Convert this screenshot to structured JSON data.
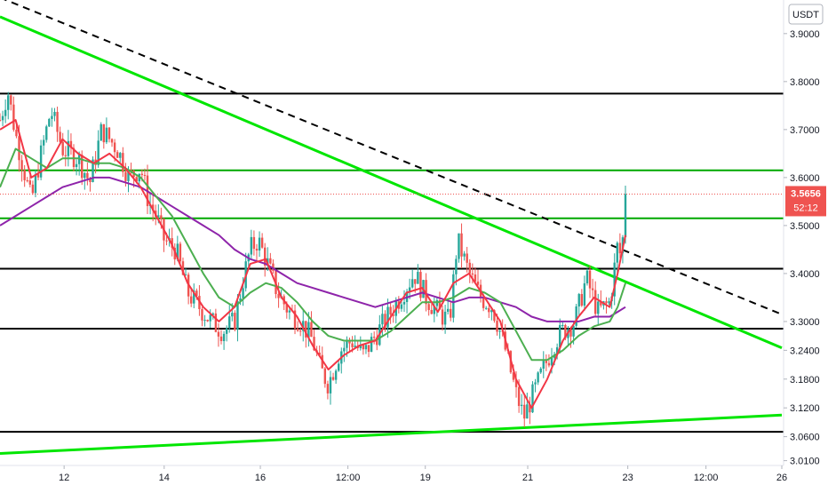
{
  "quote_currency": "USDT",
  "current_price_label": "3.5656",
  "countdown_label": "52:12",
  "colors": {
    "up": "#26a69a",
    "down": "#ef5350",
    "ema_fast": "#f23645",
    "ema_mid": "#4caf50",
    "ma_slow": "#8e24aa",
    "trendline_green": "#00e600",
    "trendline_dashed": "#000000",
    "level_black": "#000000",
    "level_green": "#00a800",
    "price_tag": "#ef5350",
    "axis_text": "#131722"
  },
  "chart_data": {
    "type": "candlestick",
    "title": "",
    "xlabel": "",
    "ylabel": "",
    "ylim": [
      3.0,
      3.97
    ],
    "grid": false,
    "y_ticks": [
      "3.9000",
      "3.8000",
      "3.7000",
      "3.6000",
      "3.5000",
      "3.4000",
      "3.3000",
      "3.2400",
      "3.1800",
      "3.1200",
      "3.0600",
      "3.0100"
    ],
    "y_tick_values": [
      3.9,
      3.8,
      3.7,
      3.6,
      3.5,
      3.4,
      3.3,
      3.24,
      3.18,
      3.12,
      3.06,
      3.01
    ],
    "x_ticks": [
      {
        "label": "12",
        "t": 0.082
      },
      {
        "label": "14",
        "t": 0.21
      },
      {
        "label": "16",
        "t": 0.333
      },
      {
        "label": "12:00",
        "t": 0.445
      },
      {
        "label": "19",
        "t": 0.544
      },
      {
        "label": "21",
        "t": 0.675
      },
      {
        "label": "23",
        "t": 0.803
      },
      {
        "label": "12:00",
        "t": 0.903
      },
      {
        "label": "26",
        "t": 1.0
      }
    ],
    "horizontal_levels": [
      {
        "price": 3.775,
        "color": "level_black"
      },
      {
        "price": 3.615,
        "color": "level_green"
      },
      {
        "price": 3.515,
        "color": "level_green"
      },
      {
        "price": 3.41,
        "color": "level_black"
      },
      {
        "price": 3.285,
        "color": "level_black"
      },
      {
        "price": 3.07,
        "color": "level_black"
      }
    ],
    "trendlines": [
      {
        "style": "solid",
        "color": "trendline_green",
        "points": [
          [
            0.0,
            3.935
          ],
          [
            1.0,
            3.245
          ]
        ]
      },
      {
        "style": "dashed",
        "color": "trendline_dashed",
        "points": [
          [
            0.0,
            3.975
          ],
          [
            1.0,
            3.315
          ]
        ]
      },
      {
        "style": "solid",
        "color": "trendline_green",
        "points": [
          [
            0.0,
            3.025
          ],
          [
            1.0,
            3.105
          ]
        ]
      }
    ],
    "current_price": 3.5656,
    "price_path": [
      [
        0.0,
        3.72
      ],
      [
        0.01,
        3.78
      ],
      [
        0.02,
        3.69
      ],
      [
        0.03,
        3.62
      ],
      [
        0.04,
        3.55
      ],
      [
        0.05,
        3.63
      ],
      [
        0.065,
        3.74
      ],
      [
        0.08,
        3.66
      ],
      [
        0.1,
        3.64
      ],
      [
        0.115,
        3.59
      ],
      [
        0.13,
        3.7
      ],
      [
        0.15,
        3.66
      ],
      [
        0.165,
        3.6
      ],
      [
        0.18,
        3.62
      ],
      [
        0.19,
        3.55
      ],
      [
        0.2,
        3.52
      ],
      [
        0.21,
        3.47
      ],
      [
        0.225,
        3.45
      ],
      [
        0.24,
        3.36
      ],
      [
        0.255,
        3.33
      ],
      [
        0.27,
        3.3
      ],
      [
        0.285,
        3.28
      ],
      [
        0.3,
        3.3
      ],
      [
        0.31,
        3.38
      ],
      [
        0.32,
        3.45
      ],
      [
        0.33,
        3.47
      ],
      [
        0.34,
        3.43
      ],
      [
        0.355,
        3.36
      ],
      [
        0.37,
        3.32
      ],
      [
        0.385,
        3.3
      ],
      [
        0.4,
        3.26
      ],
      [
        0.41,
        3.2
      ],
      [
        0.42,
        3.17
      ],
      [
        0.435,
        3.24
      ],
      [
        0.45,
        3.26
      ],
      [
        0.465,
        3.23
      ],
      [
        0.48,
        3.27
      ],
      [
        0.5,
        3.32
      ],
      [
        0.515,
        3.36
      ],
      [
        0.53,
        3.4
      ],
      [
        0.545,
        3.35
      ],
      [
        0.56,
        3.32
      ],
      [
        0.575,
        3.3
      ],
      [
        0.585,
        3.47
      ],
      [
        0.6,
        3.4
      ],
      [
        0.615,
        3.35
      ],
      [
        0.63,
        3.33
      ],
      [
        0.645,
        3.25
      ],
      [
        0.66,
        3.15
      ],
      [
        0.67,
        3.1
      ],
      [
        0.68,
        3.14
      ],
      [
        0.695,
        3.2
      ],
      [
        0.71,
        3.26
      ],
      [
        0.72,
        3.28
      ],
      [
        0.735,
        3.3
      ],
      [
        0.75,
        3.39
      ],
      [
        0.765,
        3.32
      ],
      [
        0.78,
        3.34
      ],
      [
        0.785,
        3.4
      ],
      [
        0.79,
        3.46
      ],
      [
        0.795,
        3.43
      ],
      [
        0.8,
        3.57
      ]
    ],
    "ema_fast": [
      [
        0.0,
        3.7
      ],
      [
        0.02,
        3.72
      ],
      [
        0.04,
        3.6
      ],
      [
        0.06,
        3.62
      ],
      [
        0.08,
        3.68
      ],
      [
        0.1,
        3.65
      ],
      [
        0.12,
        3.63
      ],
      [
        0.14,
        3.65
      ],
      [
        0.16,
        3.62
      ],
      [
        0.18,
        3.58
      ],
      [
        0.2,
        3.52
      ],
      [
        0.22,
        3.46
      ],
      [
        0.24,
        3.38
      ],
      [
        0.26,
        3.33
      ],
      [
        0.28,
        3.3
      ],
      [
        0.3,
        3.33
      ],
      [
        0.32,
        3.42
      ],
      [
        0.34,
        3.43
      ],
      [
        0.36,
        3.35
      ],
      [
        0.38,
        3.31
      ],
      [
        0.4,
        3.25
      ],
      [
        0.42,
        3.2
      ],
      [
        0.44,
        3.23
      ],
      [
        0.46,
        3.25
      ],
      [
        0.48,
        3.26
      ],
      [
        0.5,
        3.31
      ],
      [
        0.52,
        3.36
      ],
      [
        0.54,
        3.37
      ],
      [
        0.56,
        3.32
      ],
      [
        0.58,
        3.38
      ],
      [
        0.6,
        3.4
      ],
      [
        0.62,
        3.35
      ],
      [
        0.64,
        3.3
      ],
      [
        0.66,
        3.18
      ],
      [
        0.68,
        3.12
      ],
      [
        0.7,
        3.18
      ],
      [
        0.72,
        3.26
      ],
      [
        0.74,
        3.31
      ],
      [
        0.76,
        3.35
      ],
      [
        0.78,
        3.33
      ],
      [
        0.79,
        3.4
      ],
      [
        0.8,
        3.48
      ]
    ],
    "ema_mid": [
      [
        0.0,
        3.58
      ],
      [
        0.02,
        3.66
      ],
      [
        0.04,
        3.64
      ],
      [
        0.06,
        3.62
      ],
      [
        0.08,
        3.64
      ],
      [
        0.1,
        3.64
      ],
      [
        0.12,
        3.63
      ],
      [
        0.14,
        3.63
      ],
      [
        0.16,
        3.62
      ],
      [
        0.18,
        3.6
      ],
      [
        0.2,
        3.56
      ],
      [
        0.22,
        3.52
      ],
      [
        0.24,
        3.46
      ],
      [
        0.26,
        3.4
      ],
      [
        0.28,
        3.35
      ],
      [
        0.3,
        3.33
      ],
      [
        0.32,
        3.36
      ],
      [
        0.34,
        3.38
      ],
      [
        0.36,
        3.37
      ],
      [
        0.38,
        3.34
      ],
      [
        0.4,
        3.3
      ],
      [
        0.42,
        3.27
      ],
      [
        0.44,
        3.26
      ],
      [
        0.46,
        3.26
      ],
      [
        0.48,
        3.26
      ],
      [
        0.5,
        3.28
      ],
      [
        0.52,
        3.31
      ],
      [
        0.54,
        3.34
      ],
      [
        0.56,
        3.34
      ],
      [
        0.58,
        3.35
      ],
      [
        0.6,
        3.37
      ],
      [
        0.62,
        3.36
      ],
      [
        0.64,
        3.34
      ],
      [
        0.66,
        3.28
      ],
      [
        0.68,
        3.22
      ],
      [
        0.7,
        3.22
      ],
      [
        0.72,
        3.24
      ],
      [
        0.74,
        3.27
      ],
      [
        0.76,
        3.29
      ],
      [
        0.78,
        3.3
      ],
      [
        0.79,
        3.33
      ],
      [
        0.8,
        3.38
      ]
    ],
    "ma_slow": [
      [
        0.0,
        3.5
      ],
      [
        0.02,
        3.52
      ],
      [
        0.04,
        3.54
      ],
      [
        0.06,
        3.56
      ],
      [
        0.08,
        3.58
      ],
      [
        0.1,
        3.59
      ],
      [
        0.12,
        3.6
      ],
      [
        0.14,
        3.6
      ],
      [
        0.16,
        3.59
      ],
      [
        0.18,
        3.58
      ],
      [
        0.2,
        3.56
      ],
      [
        0.22,
        3.54
      ],
      [
        0.24,
        3.52
      ],
      [
        0.26,
        3.5
      ],
      [
        0.28,
        3.48
      ],
      [
        0.3,
        3.45
      ],
      [
        0.32,
        3.43
      ],
      [
        0.34,
        3.42
      ],
      [
        0.36,
        3.4
      ],
      [
        0.38,
        3.38
      ],
      [
        0.4,
        3.37
      ],
      [
        0.42,
        3.36
      ],
      [
        0.44,
        3.35
      ],
      [
        0.46,
        3.34
      ],
      [
        0.48,
        3.33
      ],
      [
        0.5,
        3.34
      ],
      [
        0.52,
        3.35
      ],
      [
        0.54,
        3.36
      ],
      [
        0.56,
        3.35
      ],
      [
        0.58,
        3.34
      ],
      [
        0.6,
        3.35
      ],
      [
        0.62,
        3.35
      ],
      [
        0.64,
        3.34
      ],
      [
        0.66,
        3.33
      ],
      [
        0.68,
        3.31
      ],
      [
        0.7,
        3.3
      ],
      [
        0.72,
        3.3
      ],
      [
        0.74,
        3.3
      ],
      [
        0.76,
        3.31
      ],
      [
        0.78,
        3.31
      ],
      [
        0.79,
        3.32
      ],
      [
        0.8,
        3.33
      ]
    ]
  }
}
